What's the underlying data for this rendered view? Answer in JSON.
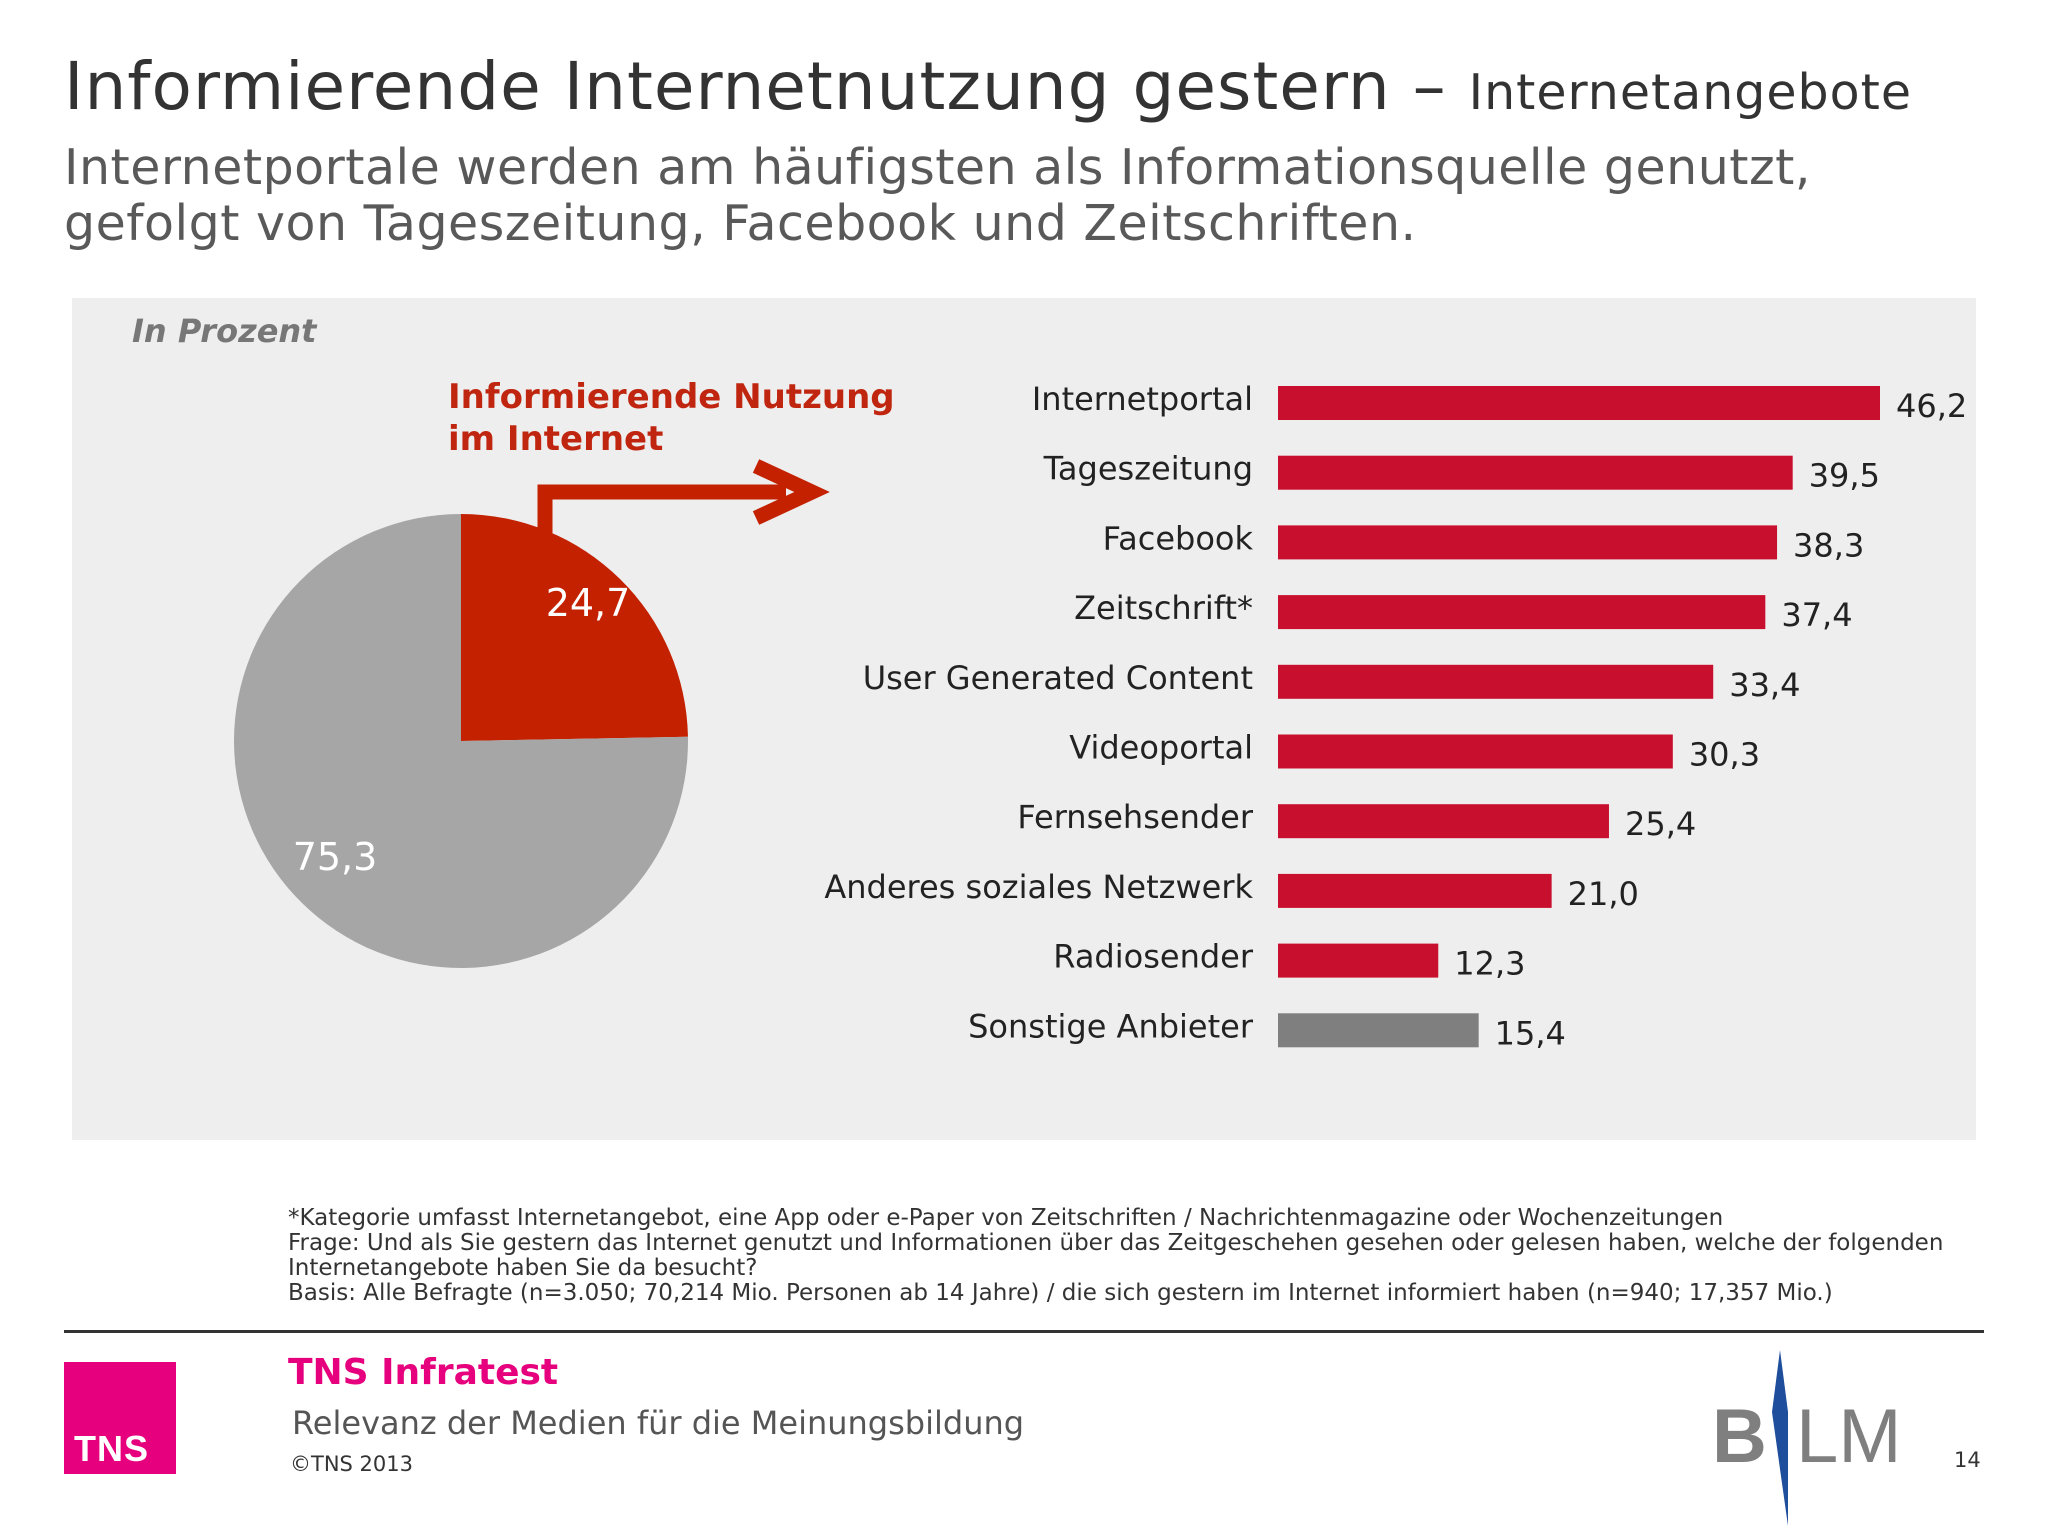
{
  "header": {
    "title": "Informierende Internetnutzung gestern –",
    "title_suffix": "Internetangebote",
    "subtitle_line1": "Internetportale werden am häufigsten als Informationsquelle genutzt,",
    "subtitle_line2": "gefolgt von Tageszeitung, Facebook und Zeitschriften."
  },
  "unit_label": "In Prozent",
  "callout": {
    "line1": "Informierende Nutzung",
    "line2": "im Internet"
  },
  "colors": {
    "accent_red": "#c0260f",
    "bar_red": "#c8102e",
    "pie_red": "#c32100",
    "pie_gray": "#a6a6a6",
    "bar_gray": "#7f7f7f",
    "panel_bg": "#eeeeee",
    "tns_magenta": "#e6007e",
    "blm_blue": "#1f4e9c"
  },
  "chart_data": [
    {
      "type": "pie",
      "labels": [
        "24,7",
        "75,3"
      ],
      "values": [
        24.7,
        75.3
      ],
      "colors": [
        "#c32100",
        "#a6a6a6"
      ],
      "start_angle_deg": 0,
      "direction": "clockwise"
    },
    {
      "type": "bar",
      "orientation": "horizontal",
      "categories": [
        "Internetportal",
        "Tageszeitung",
        "Facebook",
        "Zeitschrift*",
        "User Generated Content",
        "Videoportal",
        "Fernsehsender",
        "Anderes soziales Netzwerk",
        "Radiosender",
        "Sonstige Anbieter"
      ],
      "values": [
        46.2,
        39.5,
        38.3,
        37.4,
        33.4,
        30.3,
        25.4,
        21.0,
        12.3,
        15.4
      ],
      "value_labels": [
        "46,2",
        "39,5",
        "38,3",
        "37,4",
        "33,4",
        "30,3",
        "25,4",
        "21,0",
        "12,3",
        "15,4"
      ],
      "colors": [
        "#c8102e",
        "#c8102e",
        "#c8102e",
        "#c8102e",
        "#c8102e",
        "#c8102e",
        "#c8102e",
        "#c8102e",
        "#c8102e",
        "#7f7f7f"
      ],
      "xlim": [
        0,
        46.2
      ],
      "grid": false
    }
  ],
  "footnotes": {
    "line1": "*Kategorie umfasst Internetangebot, eine App oder e-Paper von Zeitschriften / Nachrichtenmagazine oder Wochenzeitungen",
    "line2": "Frage: Und als Sie gestern das Internet genutzt und Informationen über das Zeitgeschehen gesehen oder gelesen haben, welche der folgenden",
    "line3": "Internetangebote haben Sie da besucht?",
    "line4": "Basis: Alle Befragte (n=3.050; 70,214 Mio. Personen ab 14 Jahre) / die sich gestern im Internet informiert haben (n=940; 17,357 Mio.)"
  },
  "footer": {
    "logo_text": "TNS",
    "company": "TNS Infratest",
    "report_title": "Relevanz der Medien für die Meinungsbildung",
    "copyright": "©TNS 2013",
    "partner_logo_left": "B",
    "partner_logo_right": "LM",
    "page_number": "14"
  }
}
